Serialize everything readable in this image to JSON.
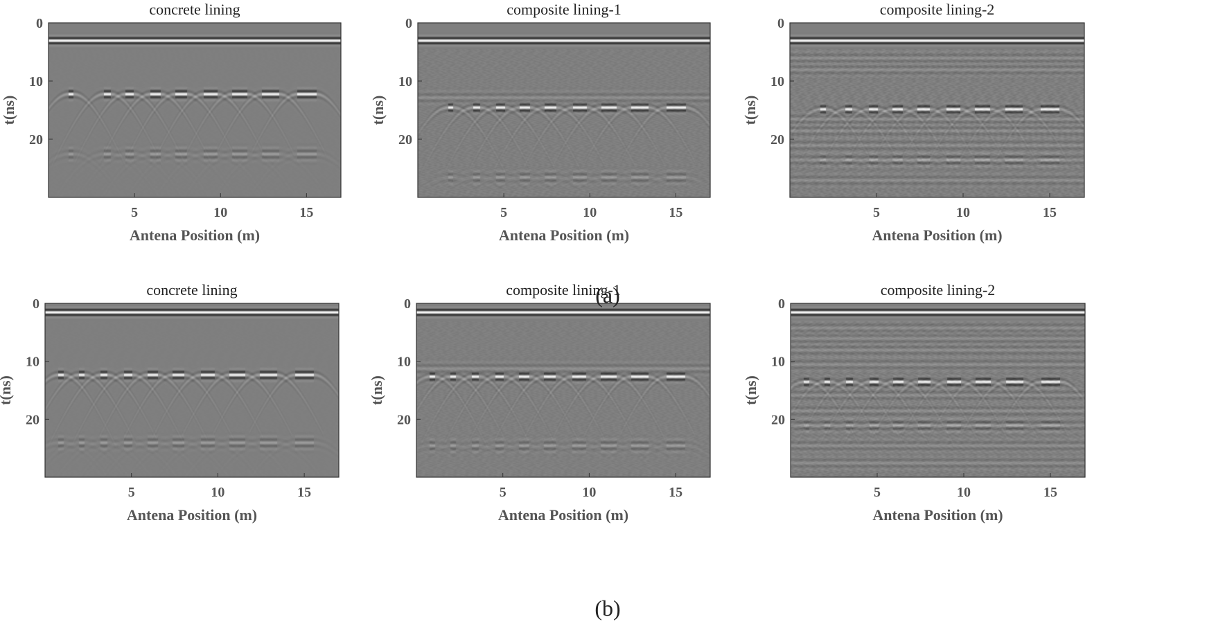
{
  "figure_captions": {
    "a": "(a)",
    "b": "(b)"
  },
  "colors": {
    "background": "#7f7f7f",
    "strong_dark": "#050505",
    "strong_light": "#f2f2f2"
  },
  "chart_data": [
    {
      "type": "heatmap",
      "row": "a",
      "title": "concrete lining",
      "xlabel": "Antena Position (m)",
      "ylabel": "t(ns)",
      "xlim": [
        0,
        17
      ],
      "ylim": [
        0,
        30
      ],
      "x_ticks": [
        5,
        10,
        15
      ],
      "x_tick_labels": [
        "5",
        "10",
        "15"
      ],
      "y_ticks": [
        0,
        10,
        20
      ],
      "y_tick_labels": [
        "0",
        "10",
        "20"
      ],
      "direct_wave_t": 3,
      "reflector_x": [
        1.3,
        3.4,
        4.7,
        6.2,
        7.7,
        9.4,
        11.1,
        12.9,
        15.0
      ],
      "reflector_t": 12.2,
      "reflector_widths": [
        0.3,
        0.4,
        0.5,
        0.6,
        0.7,
        0.8,
        0.9,
        1.0,
        1.1
      ],
      "multiple_t": 22.5,
      "layer_t": [],
      "noise": 0.05
    },
    {
      "type": "heatmap",
      "row": "a",
      "title": "composite lining-1",
      "xlabel": "Antena Position (m)",
      "ylabel": "t(ns)",
      "xlim": [
        0,
        17
      ],
      "ylim": [
        0,
        30
      ],
      "x_ticks": [
        5,
        10,
        15
      ],
      "x_tick_labels": [
        "5",
        "10",
        "15"
      ],
      "y_ticks": [
        0,
        10,
        20
      ],
      "y_tick_labels": [
        "0",
        "10",
        "20"
      ],
      "direct_wave_t": 3,
      "reflector_x": [
        1.9,
        3.4,
        4.8,
        6.2,
        7.7,
        9.4,
        11.1,
        12.9,
        15.0
      ],
      "reflector_t": 14.5,
      "reflector_widths": [
        0.3,
        0.4,
        0.5,
        0.6,
        0.7,
        0.8,
        0.9,
        1.0,
        1.1
      ],
      "multiple_t": 26.5,
      "layer_t": [
        12.8
      ],
      "noise": 0.3
    },
    {
      "type": "heatmap",
      "row": "a",
      "title": "composite lining-2",
      "xlabel": "Antena Position (m)",
      "ylabel": "t(ns)",
      "xlim": [
        0,
        17
      ],
      "ylim": [
        0,
        30
      ],
      "x_ticks": [
        5,
        10,
        15
      ],
      "x_tick_labels": [
        "5",
        "10",
        "15"
      ],
      "y_ticks": [
        0,
        10,
        20
      ],
      "y_tick_labels": [
        "0",
        "10",
        "20"
      ],
      "direct_wave_t": 3,
      "reflector_x": [
        1.9,
        3.4,
        4.8,
        6.2,
        7.7,
        9.4,
        11.1,
        12.9,
        15.0
      ],
      "reflector_t": 14.8,
      "reflector_widths": [
        0.3,
        0.4,
        0.5,
        0.6,
        0.7,
        0.8,
        0.9,
        1.0,
        1.1
      ],
      "multiple_t": 23.5,
      "layer_t": [
        6.0,
        8.0,
        16.5,
        18.5,
        21.0,
        23.5,
        27.0
      ],
      "noise": 0.45
    },
    {
      "type": "heatmap",
      "row": "b",
      "title": "concrete lining",
      "xlabel": "Antena Position (m)",
      "ylabel": "t(ns)",
      "xlim": [
        0,
        17
      ],
      "ylim": [
        0,
        30
      ],
      "x_ticks": [
        5,
        10,
        15
      ],
      "x_tick_labels": [
        "5",
        "10",
        "15"
      ],
      "y_ticks": [
        0,
        10,
        20
      ],
      "y_tick_labels": [
        "0",
        "10",
        "20"
      ],
      "direct_wave_t": 1.5,
      "reflector_x": [
        0.9,
        2.1,
        3.4,
        4.8,
        6.2,
        7.7,
        9.4,
        11.1,
        12.9,
        15.0
      ],
      "reflector_t": 12.3,
      "reflector_widths": [
        0.3,
        0.35,
        0.4,
        0.5,
        0.6,
        0.7,
        0.8,
        0.9,
        1.0,
        1.1
      ],
      "multiple_t": 24.0,
      "layer_t": [],
      "noise": 0.05
    },
    {
      "type": "heatmap",
      "row": "b",
      "title": "composite lining-1",
      "xlabel": "Antena Position (m)",
      "ylabel": "t(ns)",
      "xlim": [
        0,
        17
      ],
      "ylim": [
        0,
        30
      ],
      "x_ticks": [
        5,
        10,
        15
      ],
      "x_tick_labels": [
        "5",
        "10",
        "15"
      ],
      "y_ticks": [
        0,
        10,
        20
      ],
      "y_tick_labels": [
        "0",
        "10",
        "20"
      ],
      "direct_wave_t": 1.5,
      "reflector_x": [
        0.9,
        2.1,
        3.4,
        4.8,
        6.2,
        7.7,
        9.4,
        11.1,
        12.9,
        15.0
      ],
      "reflector_t": 12.6,
      "reflector_widths": [
        0.3,
        0.35,
        0.4,
        0.5,
        0.6,
        0.7,
        0.8,
        0.9,
        1.0,
        1.1
      ],
      "multiple_t": 24.5,
      "layer_t": [
        11.2
      ],
      "noise": 0.25
    },
    {
      "type": "heatmap",
      "row": "b",
      "title": "composite lining-2",
      "xlabel": "Antena Position (m)",
      "ylabel": "t(ns)",
      "xlim": [
        0,
        17
      ],
      "ylim": [
        0,
        30
      ],
      "x_ticks": [
        5,
        10,
        15
      ],
      "x_tick_labels": [
        "5",
        "10",
        "15"
      ],
      "y_ticks": [
        0,
        10,
        20
      ],
      "y_tick_labels": [
        "0",
        "10",
        "20"
      ],
      "direct_wave_t": 1.5,
      "reflector_x": [
        0.9,
        2.1,
        3.4,
        4.8,
        6.2,
        7.7,
        9.4,
        11.1,
        12.9,
        15.0
      ],
      "reflector_t": 13.5,
      "reflector_widths": [
        0.3,
        0.35,
        0.4,
        0.5,
        0.6,
        0.7,
        0.8,
        0.9,
        1.0,
        1.1
      ],
      "multiple_t": 21.0,
      "layer_t": [
        4.2,
        6.0,
        8.0,
        10.5,
        15.8,
        18.5,
        21.0,
        24.5,
        27.5
      ],
      "noise": 0.45
    }
  ]
}
